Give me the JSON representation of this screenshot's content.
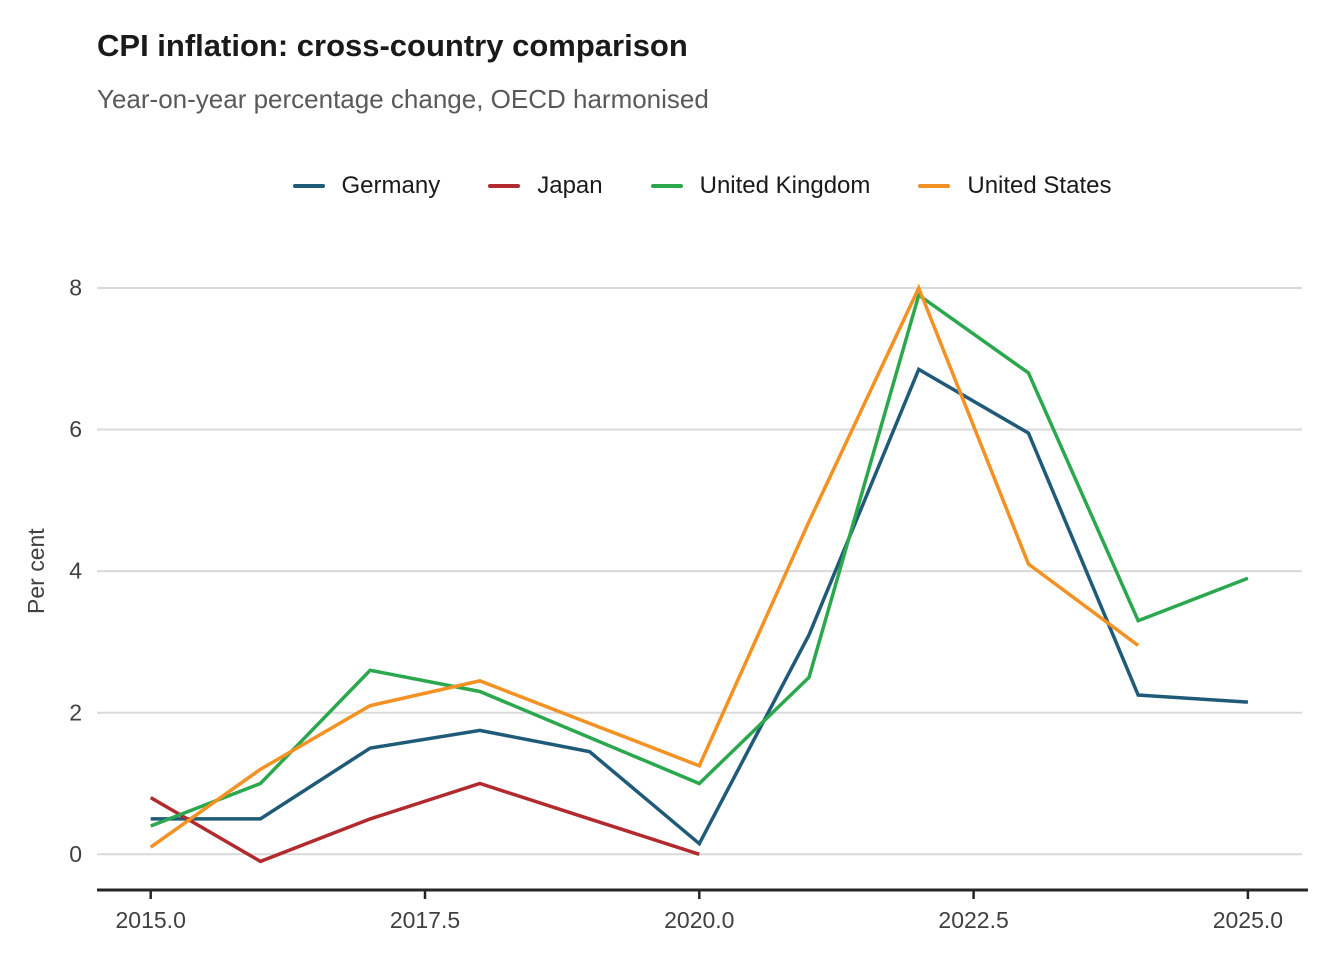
{
  "chart_data": {
    "type": "line",
    "title": "CPI inflation: cross-country comparison",
    "subtitle": "Year-on-year percentage change, OECD harmonised",
    "ylabel": "Per cent",
    "xlabel": "",
    "x": [
      2015,
      2016,
      2017,
      2018,
      2019,
      2020,
      2021,
      2022,
      2023,
      2024,
      2025
    ],
    "series": [
      {
        "name": "Germany",
        "color": "#1f5b78",
        "values": [
          0.5,
          0.5,
          1.5,
          1.75,
          1.45,
          0.15,
          3.1,
          6.85,
          5.95,
          2.25,
          2.15
        ]
      },
      {
        "name": "Japan",
        "color": "#b2292e",
        "values": [
          0.8,
          -0.1,
          0.5,
          1.0,
          0.5,
          0.0,
          null,
          null,
          null,
          null,
          null
        ]
      },
      {
        "name": "United Kingdom",
        "color": "#2ba84e",
        "values": [
          0.4,
          1.0,
          2.6,
          2.3,
          1.65,
          1.0,
          2.5,
          7.9,
          6.8,
          3.3,
          3.9
        ]
      },
      {
        "name": "United States",
        "color": "#f39123",
        "values": [
          0.1,
          1.2,
          2.1,
          2.45,
          1.85,
          1.25,
          4.7,
          8.0,
          4.1,
          2.95,
          null
        ]
      }
    ],
    "yticks": [
      0,
      2,
      4,
      6,
      8
    ],
    "ytick_labels": [
      "0",
      "2",
      "4",
      "6",
      "8"
    ],
    "xticks": [
      2015,
      2017.5,
      2020,
      2022.5,
      2025
    ],
    "xtick_labels": [
      "2015.0",
      "2017.5",
      "2020.0",
      "2022.5",
      "2025.0"
    ],
    "ylim": [
      -0.5,
      8.5
    ],
    "xlim": [
      2014.5,
      2025.5
    ],
    "grid": "horizontal-only",
    "legend_position": "top-center",
    "style": {
      "background": "#ffffff",
      "grid_color": "#d9d9d9",
      "axis_color": "#262626",
      "tick_label_color": "#404040",
      "title_color": "#1a1a1a",
      "subtitle_color": "#595959",
      "legend_text_color": "#1a1a1a",
      "line_width": 3.5
    }
  }
}
